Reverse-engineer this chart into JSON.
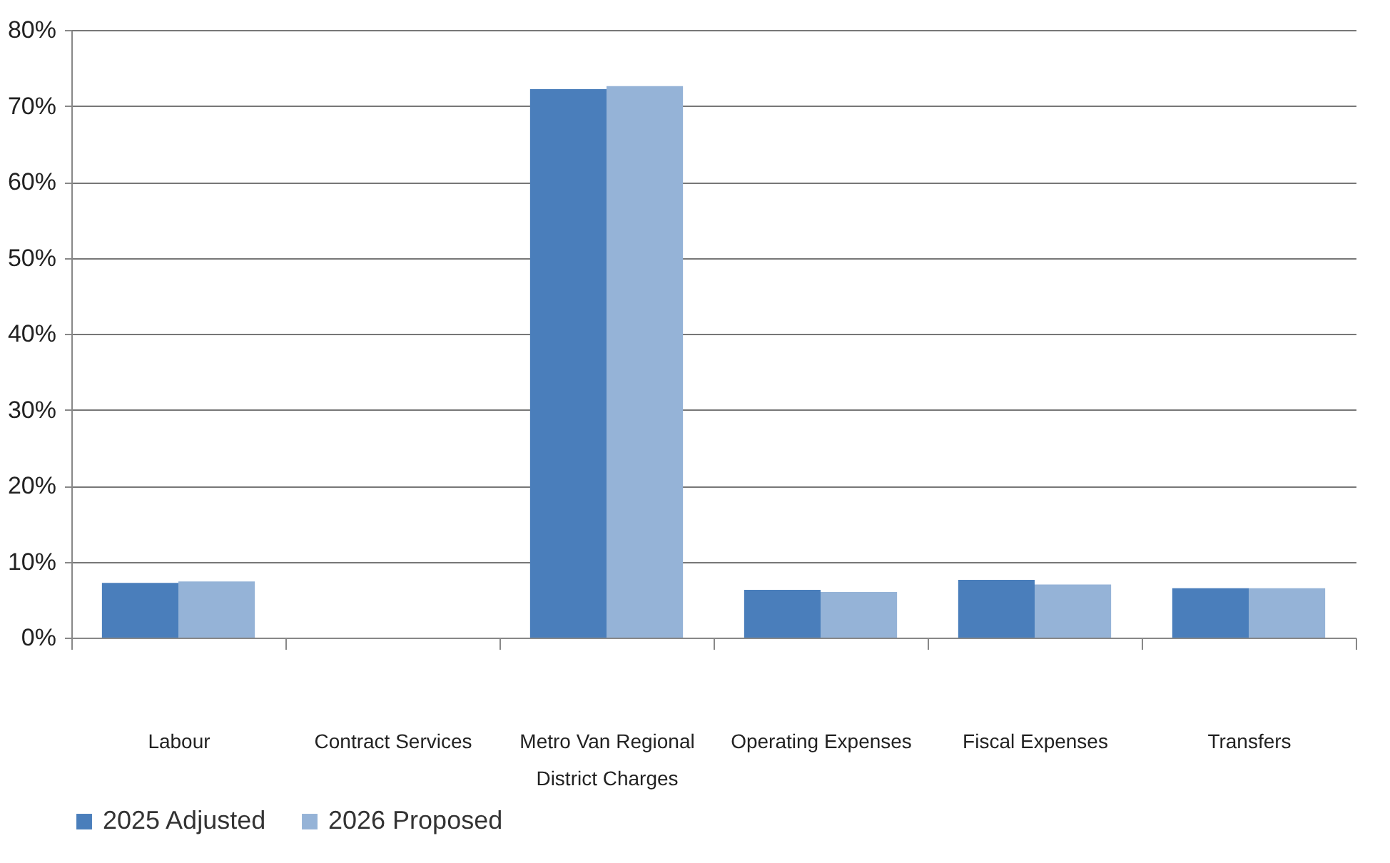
{
  "chart_data": {
    "type": "bar",
    "categories": [
      "Labour",
      "Contract Services",
      "Metro Van Regional District Charges",
      "Operating Expenses",
      "Fiscal Expenses",
      "Transfers"
    ],
    "series": [
      {
        "name": "2025 Adjusted",
        "color": "#4a7ebb",
        "values": [
          7.2,
          0,
          72.2,
          6.3,
          7.6,
          6.5
        ]
      },
      {
        "name": "2026 Proposed",
        "color": "#95b3d7",
        "values": [
          7.4,
          0,
          72.6,
          6.0,
          7.0,
          6.5
        ]
      }
    ],
    "ylim": [
      0,
      80
    ],
    "yticks": [
      {
        "value": 0,
        "label": "0%"
      },
      {
        "value": 10,
        "label": "10%"
      },
      {
        "value": 20,
        "label": "20%"
      },
      {
        "value": 30,
        "label": "30%"
      },
      {
        "value": 40,
        "label": "40%"
      },
      {
        "value": 50,
        "label": "50%"
      },
      {
        "value": 60,
        "label": "60%"
      },
      {
        "value": 70,
        "label": "70%"
      },
      {
        "value": 80,
        "label": "80%"
      }
    ],
    "grid": "y",
    "legend": "bottom"
  }
}
